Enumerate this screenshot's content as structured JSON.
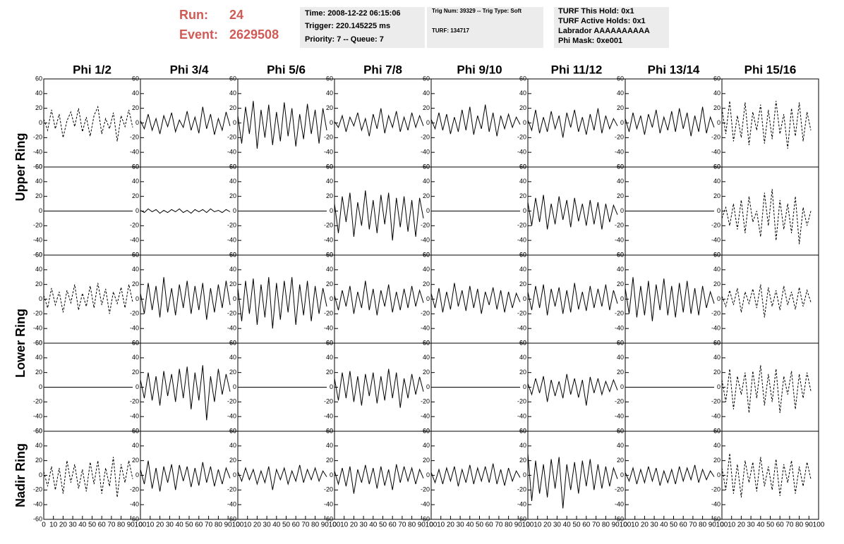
{
  "header": {
    "run_label": "Run:",
    "run": 24,
    "event_label": "Event:",
    "event": 2629508,
    "box1": [
      "Time: 2008-12-22 06:15:06",
      "Trigger: 220.145225 ms",
      "Priority: 7 -- Queue: 7"
    ],
    "box2": [
      "Trig Num: 39329 -- Trig Type: Soft",
      "TURF: 134717"
    ],
    "box3": [
      "TURF This Hold: 0x1",
      "TURF Active Holds: 0x1",
      "Labrador AAAAAAAAAA",
      "Phi Mask: 0xe001"
    ]
  },
  "columns": [
    "Phi 1/2",
    "Phi 3/4",
    "Phi 5/6",
    "Phi 7/8",
    "Phi 9/10",
    "Phi 11/12",
    "Phi 13/14",
    "Phi 15/16"
  ],
  "rows": [
    "Upper Ring",
    "Lower Ring",
    "Nadir Ring"
  ],
  "axes": {
    "xlim": [
      0,
      100
    ],
    "xticks": [
      0,
      10,
      20,
      30,
      40,
      50,
      60,
      70,
      80,
      90,
      100
    ],
    "ylim": [
      -60,
      60
    ],
    "yticks": [
      -60,
      -40,
      -20,
      0,
      20,
      40,
      60
    ]
  },
  "x": [
    0,
    4,
    8,
    12,
    16,
    20,
    24,
    28,
    32,
    36,
    40,
    44,
    48,
    52,
    56,
    60,
    64,
    68,
    72,
    76,
    80,
    84,
    88,
    92
  ],
  "chart_data": [
    {
      "type": "line",
      "dashed": true,
      "values": [
        5,
        -10,
        18,
        -8,
        12,
        -20,
        3,
        15,
        -5,
        20,
        -12,
        8,
        -18,
        10,
        22,
        -15,
        6,
        -8,
        14,
        -25,
        10,
        -5,
        18,
        -6
      ]
    },
    {
      "type": "line",
      "dashed": false,
      "values": [
        3,
        -8,
        12,
        -10,
        6,
        -15,
        10,
        -5,
        14,
        -12,
        4,
        -6,
        16,
        -10,
        8,
        -14,
        22,
        -8,
        12,
        -16,
        6,
        -10,
        15,
        -4
      ]
    },
    {
      "type": "line",
      "dashed": false,
      "values": [
        10,
        -28,
        22,
        -15,
        30,
        -35,
        18,
        -20,
        25,
        -30,
        15,
        -25,
        28,
        -18,
        20,
        -32,
        12,
        -22,
        26,
        -15,
        18,
        -28,
        20,
        -10
      ]
    },
    {
      "type": "line",
      "dashed": false,
      "values": [
        2,
        -6,
        10,
        -12,
        8,
        -4,
        14,
        -10,
        6,
        -18,
        12,
        -8,
        20,
        -14,
        10,
        -6,
        16,
        -12,
        8,
        -10,
        14,
        -6,
        10,
        -4
      ]
    },
    {
      "type": "line",
      "dashed": false,
      "values": [
        5,
        -8,
        14,
        -10,
        12,
        -15,
        8,
        -12,
        18,
        -10,
        22,
        -16,
        10,
        -8,
        25,
        -12,
        14,
        -18,
        10,
        -8,
        12,
        -6,
        8,
        -2
      ]
    },
    {
      "type": "line",
      "dashed": false,
      "values": [
        4,
        -10,
        18,
        -14,
        8,
        -12,
        16,
        -8,
        10,
        -20,
        14,
        -6,
        18,
        -12,
        8,
        -16,
        12,
        -10,
        20,
        -14,
        10,
        -8,
        6,
        -4
      ]
    },
    {
      "type": "line",
      "dashed": false,
      "values": [
        6,
        -12,
        14,
        -8,
        10,
        -16,
        12,
        -6,
        18,
        -14,
        8,
        -10,
        16,
        -12,
        20,
        -8,
        14,
        -18,
        10,
        -12,
        22,
        -14,
        8,
        -6
      ]
    },
    {
      "type": "line",
      "dashed": true,
      "values": [
        20,
        -15,
        30,
        -25,
        10,
        -20,
        28,
        -30,
        15,
        -10,
        25,
        -28,
        18,
        -22,
        30,
        -15,
        12,
        -35,
        20,
        -18,
        28,
        -25,
        15,
        -10
      ]
    },
    {
      "type": "line",
      "dashed": false,
      "values": [
        0,
        0,
        0,
        0,
        0,
        0,
        0,
        0,
        0,
        0,
        0,
        0,
        0,
        0,
        0,
        0,
        0,
        0,
        0,
        0,
        0,
        0,
        0,
        0
      ]
    },
    {
      "type": "line",
      "dashed": false,
      "values": [
        1,
        -2,
        3,
        -1,
        2,
        -3,
        1,
        -2,
        2,
        -1,
        3,
        -2,
        1,
        -3,
        2,
        -1,
        2,
        -2,
        3,
        -1,
        1,
        -2,
        2,
        -1
      ]
    },
    {
      "type": "line",
      "dashed": false,
      "values": [
        0,
        0,
        0,
        0,
        0,
        0,
        0,
        0,
        0,
        0,
        0,
        0,
        0,
        0,
        0,
        0,
        0,
        0,
        0,
        0,
        0,
        0,
        0,
        0
      ]
    },
    {
      "type": "line",
      "dashed": false,
      "values": [
        10,
        -30,
        20,
        -15,
        25,
        -35,
        12,
        -20,
        28,
        -25,
        15,
        -30,
        22,
        -18,
        25,
        -40,
        18,
        -22,
        20,
        -28,
        15,
        -35,
        18,
        -10
      ]
    },
    {
      "type": "line",
      "dashed": false,
      "values": [
        0,
        0,
        0,
        0,
        0,
        0,
        0,
        0,
        0,
        0,
        0,
        0,
        0,
        0,
        0,
        0,
        0,
        0,
        0,
        0,
        0,
        0,
        0,
        0
      ]
    },
    {
      "type": "line",
      "dashed": false,
      "values": [
        12,
        -20,
        18,
        -15,
        22,
        -25,
        10,
        -18,
        20,
        -12,
        15,
        -22,
        18,
        -14,
        10,
        -20,
        15,
        -18,
        12,
        -25,
        10,
        -15,
        8,
        -5
      ]
    },
    {
      "type": "line",
      "dashed": false,
      "values": [
        0,
        0,
        0,
        0,
        0,
        0,
        0,
        0,
        0,
        0,
        0,
        0,
        0,
        0,
        0,
        0,
        0,
        0,
        0,
        0,
        0,
        0,
        0,
        0
      ]
    },
    {
      "type": "line",
      "dashed": true,
      "values": [
        -10,
        5,
        -20,
        10,
        -25,
        15,
        -30,
        20,
        -15,
        0,
        -35,
        25,
        -20,
        30,
        -40,
        15,
        -25,
        10,
        -30,
        20,
        -45,
        5,
        -20,
        0
      ]
    },
    {
      "type": "line",
      "dashed": true,
      "values": [
        5,
        -12,
        15,
        -8,
        10,
        -18,
        12,
        -5,
        20,
        -15,
        8,
        -10,
        18,
        -12,
        22,
        -8,
        14,
        -20,
        10,
        -6,
        16,
        -12,
        20,
        -4
      ]
    },
    {
      "type": "line",
      "dashed": false,
      "values": [
        8,
        -20,
        22,
        -15,
        18,
        -25,
        30,
        -18,
        15,
        -22,
        20,
        -12,
        25,
        -20,
        18,
        -15,
        22,
        -28,
        15,
        -18,
        20,
        -12,
        25,
        -8
      ]
    },
    {
      "type": "line",
      "dashed": false,
      "values": [
        15,
        -30,
        25,
        -20,
        28,
        -35,
        20,
        -25,
        30,
        -40,
        22,
        -28,
        25,
        -18,
        30,
        -35,
        20,
        -22,
        25,
        -30,
        18,
        -20,
        15,
        -10
      ]
    },
    {
      "type": "line",
      "dashed": false,
      "values": [
        5,
        -15,
        12,
        -10,
        18,
        -20,
        10,
        -12,
        25,
        -15,
        14,
        -22,
        12,
        -10,
        20,
        -18,
        10,
        -15,
        14,
        -12,
        18,
        -10,
        12,
        -5
      ]
    },
    {
      "type": "line",
      "dashed": false,
      "values": [
        8,
        -12,
        15,
        -18,
        10,
        -14,
        22,
        -10,
        12,
        -16,
        18,
        -12,
        14,
        -20,
        10,
        -8,
        16,
        -14,
        12,
        -18,
        10,
        -12,
        8,
        -4
      ]
    },
    {
      "type": "line",
      "dashed": false,
      "values": [
        10,
        -15,
        18,
        -12,
        20,
        -22,
        14,
        -10,
        16,
        -20,
        12,
        -18,
        22,
        -14,
        10,
        -16,
        18,
        -12,
        14,
        -10,
        20,
        -15,
        12,
        -6
      ]
    },
    {
      "type": "line",
      "dashed": false,
      "values": [
        15,
        -20,
        30,
        -25,
        18,
        -22,
        25,
        -30,
        20,
        -15,
        28,
        -22,
        18,
        -25,
        22,
        -18,
        25,
        -20,
        15,
        -22,
        18,
        -12,
        10,
        -6
      ]
    },
    {
      "type": "line",
      "dashed": true,
      "values": [
        4,
        -10,
        12,
        -8,
        15,
        -18,
        10,
        -6,
        14,
        -12,
        20,
        -25,
        16,
        -10,
        12,
        -15,
        18,
        -8,
        10,
        -14,
        16,
        -10,
        12,
        -4
      ]
    },
    {
      "type": "line",
      "dashed": false,
      "values": [
        0,
        0,
        0,
        0,
        0,
        0,
        0,
        0,
        0,
        0,
        0,
        0,
        0,
        0,
        0,
        0,
        0,
        0,
        0,
        0,
        0,
        0,
        0,
        0
      ]
    },
    {
      "type": "line",
      "dashed": false,
      "values": [
        10,
        -15,
        20,
        -18,
        15,
        -25,
        22,
        -12,
        18,
        -20,
        25,
        -15,
        28,
        -30,
        20,
        -18,
        30,
        -45,
        15,
        -20,
        25,
        -10,
        18,
        -6
      ]
    },
    {
      "type": "line",
      "dashed": false,
      "values": [
        0,
        0,
        0,
        0,
        0,
        0,
        0,
        0,
        0,
        0,
        0,
        0,
        0,
        0,
        0,
        0,
        0,
        0,
        0,
        0,
        0,
        0,
        0,
        0
      ]
    },
    {
      "type": "line",
      "dashed": false,
      "values": [
        12,
        -18,
        20,
        -15,
        22,
        -20,
        15,
        -25,
        18,
        -12,
        20,
        -22,
        15,
        -18,
        25,
        -15,
        20,
        -28,
        12,
        -15,
        18,
        -10,
        14,
        -6
      ]
    },
    {
      "type": "line",
      "dashed": false,
      "values": [
        0,
        0,
        0,
        0,
        0,
        0,
        0,
        0,
        0,
        0,
        0,
        0,
        0,
        0,
        0,
        0,
        0,
        0,
        0,
        0,
        0,
        0,
        0,
        0
      ]
    },
    {
      "type": "line",
      "dashed": false,
      "values": [
        5,
        -10,
        12,
        -8,
        15,
        -20,
        10,
        -12,
        8,
        -15,
        18,
        -10,
        12,
        -14,
        10,
        -25,
        14,
        -8,
        12,
        -10,
        8,
        -6,
        10,
        -4
      ]
    },
    {
      "type": "line",
      "dashed": false,
      "values": [
        0,
        0,
        0,
        0,
        0,
        0,
        0,
        0,
        0,
        0,
        0,
        0,
        0,
        0,
        0,
        0,
        0,
        0,
        0,
        0,
        0,
        0,
        0,
        0
      ]
    },
    {
      "type": "line",
      "dashed": true,
      "values": [
        10,
        -20,
        25,
        -30,
        15,
        -10,
        20,
        -35,
        22,
        -15,
        30,
        -25,
        18,
        -20,
        25,
        -35,
        15,
        -10,
        22,
        -30,
        18,
        -15,
        20,
        -5
      ]
    },
    {
      "type": "line",
      "dashed": true,
      "values": [
        5,
        -15,
        12,
        -20,
        10,
        -25,
        20,
        -10,
        15,
        -18,
        8,
        -22,
        18,
        -12,
        20,
        -25,
        10,
        -15,
        25,
        -30,
        15,
        -10,
        20,
        -5
      ]
    },
    {
      "type": "line",
      "dashed": false,
      "values": [
        8,
        -12,
        20,
        -18,
        10,
        -22,
        12,
        -10,
        15,
        -20,
        14,
        -8,
        12,
        -16,
        10,
        -14,
        18,
        -10,
        12,
        -15,
        8,
        -12,
        10,
        -4
      ]
    },
    {
      "type": "line",
      "dashed": false,
      "values": [
        5,
        -8,
        10,
        -6,
        8,
        -12,
        6,
        -10,
        12,
        -20,
        8,
        -6,
        10,
        -12,
        6,
        -8,
        14,
        -10,
        8,
        -6,
        10,
        -8,
        6,
        -2
      ]
    },
    {
      "type": "line",
      "dashed": false,
      "values": [
        6,
        -12,
        10,
        -15,
        12,
        -25,
        8,
        -10,
        14,
        -12,
        10,
        -18,
        12,
        -14,
        8,
        -20,
        15,
        -10,
        12,
        -8,
        10,
        -12,
        8,
        -4
      ]
    },
    {
      "type": "line",
      "dashed": false,
      "values": [
        4,
        -10,
        8,
        -12,
        10,
        -8,
        12,
        -15,
        8,
        -10,
        14,
        -12,
        10,
        -8,
        12,
        -10,
        16,
        -12,
        8,
        -14,
        10,
        -8,
        6,
        -3
      ]
    },
    {
      "type": "line",
      "dashed": false,
      "values": [
        30,
        -35,
        20,
        -25,
        15,
        -30,
        22,
        -18,
        25,
        -45,
        15,
        -20,
        18,
        -25,
        20,
        -15,
        22,
        -20,
        15,
        -18,
        12,
        -15,
        10,
        -5
      ]
    },
    {
      "type": "line",
      "dashed": false,
      "values": [
        4,
        -8,
        10,
        -12,
        8,
        -10,
        12,
        -8,
        10,
        -14,
        6,
        -10,
        8,
        -12,
        12,
        -8,
        10,
        -6,
        14,
        -10,
        8,
        -6,
        6,
        -2
      ]
    },
    {
      "type": "line",
      "dashed": true,
      "values": [
        10,
        -20,
        30,
        -25,
        15,
        -30,
        20,
        -10,
        18,
        -22,
        25,
        -15,
        12,
        -20,
        22,
        -28,
        15,
        -10,
        20,
        -25,
        12,
        -15,
        18,
        -5
      ]
    }
  ]
}
